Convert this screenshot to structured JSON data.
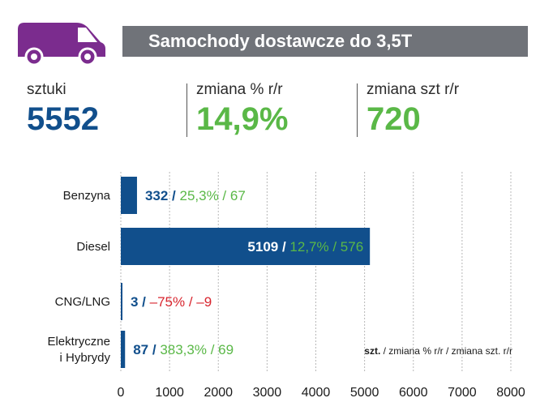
{
  "header": {
    "title": "Samochody dostawcze do 3,5T",
    "icon": "delivery-van-icon",
    "icon_color": "#7b2c8e",
    "bar_color": "#707379"
  },
  "kpis": [
    {
      "label": "sztuki",
      "value": "5552",
      "color": "#114f8c"
    },
    {
      "label": "zmiana % r/r",
      "value": "14,9%",
      "color": "#5ab847"
    },
    {
      "label": "zmiana szt r/r",
      "value": "720",
      "color": "#5ab847"
    }
  ],
  "chart_data": {
    "type": "bar",
    "orientation": "horizontal",
    "categories": [
      "Benzyna",
      "Diesel",
      "CNG/LNG",
      "Elektryczne i Hybrydy"
    ],
    "values": [
      332,
      5109,
      3,
      87
    ],
    "pct_change": [
      "25,3%",
      "12,7%",
      "–75%",
      "383,3%"
    ],
    "abs_change": [
      "67",
      "576",
      "–9",
      "69"
    ],
    "change_colors": [
      "#5ab847",
      "#5ab847",
      "#d8262f",
      "#5ab847"
    ],
    "xlim": [
      0,
      8000
    ],
    "xticks": [
      0,
      1000,
      2000,
      3000,
      4000,
      5000,
      6000,
      7000,
      8000
    ],
    "grid": true,
    "bar_color": "#114f8c",
    "legend": {
      "bold": "szt.",
      "rest": " / zmiana % r/r / zmiana szt. r/r"
    }
  }
}
